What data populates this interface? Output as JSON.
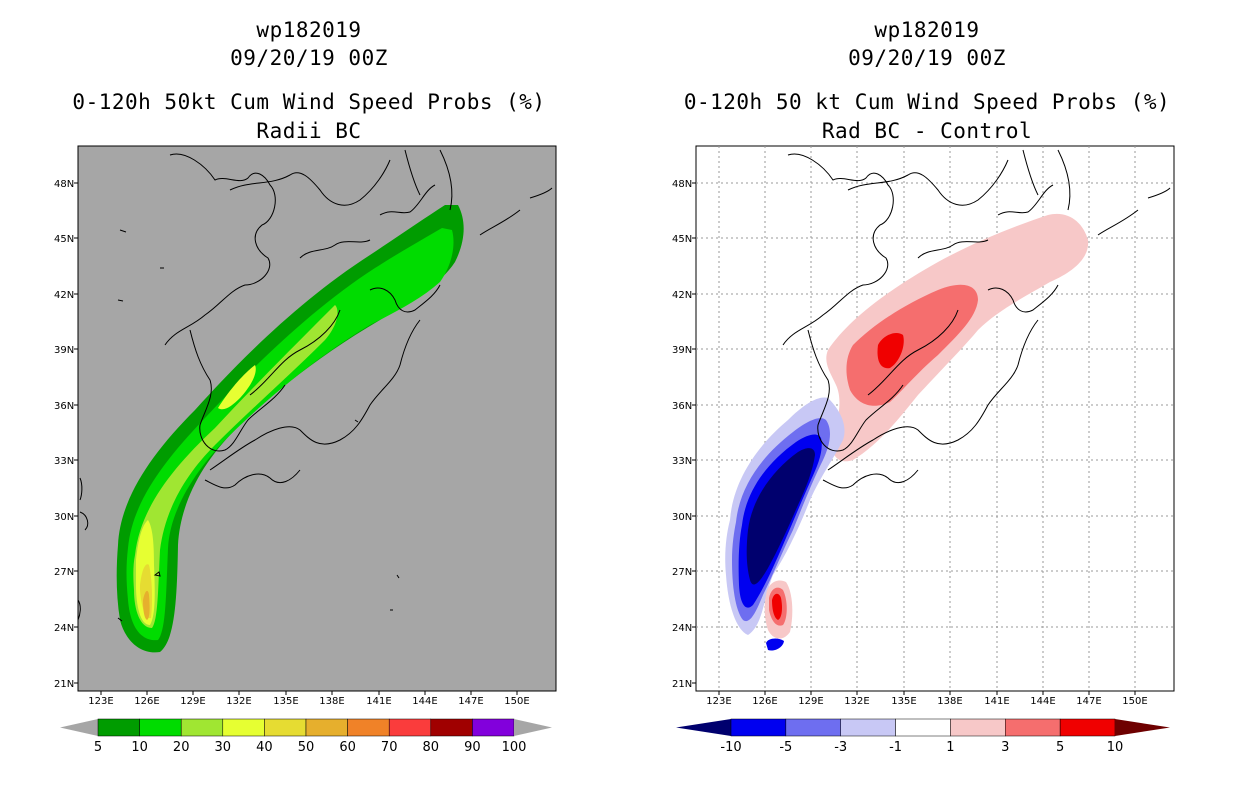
{
  "left_panel": {
    "title_line1": "wp182019",
    "title_line2": "09/20/19 00Z",
    "title_line3": "0-120h 50kt Cum Wind Speed Probs (%)",
    "title_line4": "Radii BC",
    "lat_labels": [
      "48N",
      "45N",
      "42N",
      "39N",
      "36N",
      "33N",
      "30N",
      "27N",
      "24N",
      "21N"
    ],
    "lon_labels": [
      "123E",
      "126E",
      "129E",
      "132E",
      "135E",
      "138E",
      "141E",
      "144E",
      "147E",
      "150E"
    ],
    "colorbar": {
      "labels": [
        "5",
        "10",
        "20",
        "30",
        "40",
        "50",
        "60",
        "70",
        "80",
        "90",
        "100"
      ],
      "colors": [
        "#009c00",
        "#00dc00",
        "#a0e632",
        "#e6ff32",
        "#e6dc32",
        "#e6af2d",
        "#f08228",
        "#fa3c3c",
        "#a00000",
        "#8200dc"
      ],
      "under_color": "#a6a6a6",
      "over_color": "#a6a6a6"
    },
    "background_color": "#a6a6a6"
  },
  "right_panel": {
    "title_line1": "wp182019",
    "title_line2": "09/20/19 00Z",
    "title_line3": "0-120h 50 kt Cum Wind Speed Probs (%)",
    "title_line4": "Rad BC - Control",
    "lat_labels": [
      "48N",
      "45N",
      "42N",
      "39N",
      "36N",
      "33N",
      "30N",
      "27N",
      "24N",
      "21N"
    ],
    "lon_labels": [
      "123E",
      "126E",
      "129E",
      "132E",
      "135E",
      "138E",
      "141E",
      "144E",
      "147E",
      "150E"
    ],
    "colorbar": {
      "labels": [
        "-10",
        "-5",
        "-3",
        "-1",
        "1",
        "3",
        "5",
        "10"
      ],
      "colors": [
        "#0000f0",
        "#6e6ef0",
        "#c8c8f5",
        "#ffffff",
        "#f7c8c8",
        "#f56e6e",
        "#f00000"
      ],
      "under_color": "#00006e",
      "over_color": "#6e0000"
    },
    "background_color": "#ffffff"
  }
}
